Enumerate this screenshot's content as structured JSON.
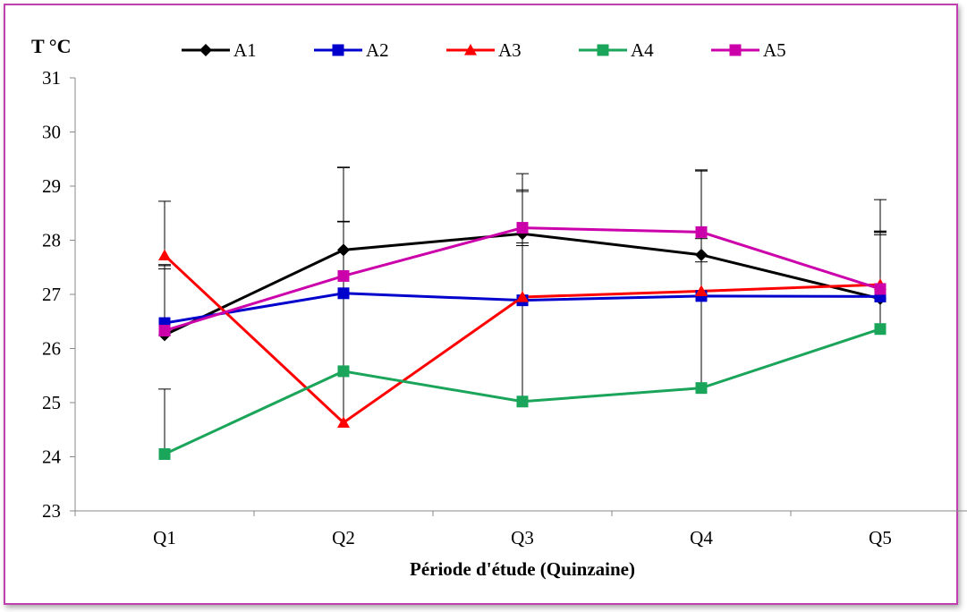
{
  "chart_data": {
    "type": "line",
    "ylabel": "T °C",
    "xlabel": "Période d'étude (Quinzaine)",
    "categories": [
      "Q1",
      "Q2",
      "Q3",
      "Q4",
      "Q5"
    ],
    "ylim": [
      23,
      31
    ],
    "yticks": [
      23,
      24,
      25,
      26,
      27,
      28,
      29,
      30,
      31
    ],
    "legend_position": "top",
    "grid": false,
    "series": [
      {
        "name": "A1",
        "color": "#000000",
        "marker": "diamond",
        "values": [
          26.25,
          27.82,
          28.12,
          27.73,
          26.92
        ],
        "err_up": [
          1.3,
          0.53,
          0.78,
          1.55,
          1.25
        ]
      },
      {
        "name": "A2",
        "color": "#0000cc",
        "marker": "square",
        "values": [
          26.47,
          27.02,
          26.89,
          26.97,
          26.96
        ],
        "err_up": [
          1.0,
          1.32,
          1.06,
          0.63,
          1.14
        ]
      },
      {
        "name": "A3",
        "color": "#ff0000",
        "marker": "triangle",
        "values": [
          27.72,
          24.63,
          26.95,
          27.06,
          27.18
        ],
        "err_up": [
          1.0,
          4.72,
          1.98,
          2.22,
          0.96
        ]
      },
      {
        "name": "A4",
        "color": "#1aa55a",
        "marker": "square",
        "values": [
          24.05,
          25.58,
          25.02,
          25.27,
          26.36
        ],
        "err_up": [
          1.2,
          3.76,
          2.88,
          2.76,
          1.8
        ]
      },
      {
        "name": "A5",
        "color": "#cc00aa",
        "marker": "square",
        "values": [
          26.33,
          27.34,
          28.23,
          28.15,
          27.1
        ],
        "err_up": [
          1.2,
          1.0,
          1.0,
          1.15,
          1.65
        ]
      }
    ]
  }
}
